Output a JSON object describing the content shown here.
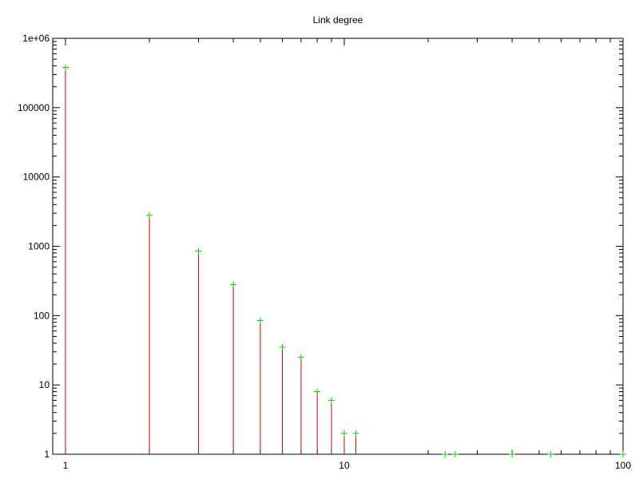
{
  "chart_data": {
    "type": "scatter",
    "title": "Link degree",
    "xlabel": "",
    "ylabel": "",
    "x_scale": "log",
    "y_scale": "log",
    "xlim": [
      0.9,
      100
    ],
    "ylim": [
      1,
      1000000
    ],
    "x_ticks": [
      1,
      10,
      100
    ],
    "x_tick_labels": [
      "1",
      "10",
      "100"
    ],
    "y_ticks": [
      1,
      10,
      100,
      1000,
      10000,
      100000,
      1000000
    ],
    "y_tick_labels": [
      "1",
      "10",
      "100",
      "1000",
      "10000",
      "100000",
      "1e+06"
    ],
    "grid": false,
    "legend": "none",
    "impulse_color": "#cc0000",
    "point_color": "#00dd00",
    "points": [
      {
        "x": 1,
        "y": 380000
      },
      {
        "x": 2,
        "y": 2800
      },
      {
        "x": 3,
        "y": 850
      },
      {
        "x": 4,
        "y": 280
      },
      {
        "x": 5,
        "y": 85
      },
      {
        "x": 6,
        "y": 35
      },
      {
        "x": 7,
        "y": 25
      },
      {
        "x": 8,
        "y": 8
      },
      {
        "x": 9,
        "y": 6
      },
      {
        "x": 10,
        "y": 2
      },
      {
        "x": 11,
        "y": 2
      },
      {
        "x": 23,
        "y": 1
      },
      {
        "x": 25,
        "y": 1
      },
      {
        "x": 40,
        "y": 1
      },
      {
        "x": 55,
        "y": 1
      },
      {
        "x": 100,
        "y": 1
      }
    ]
  }
}
